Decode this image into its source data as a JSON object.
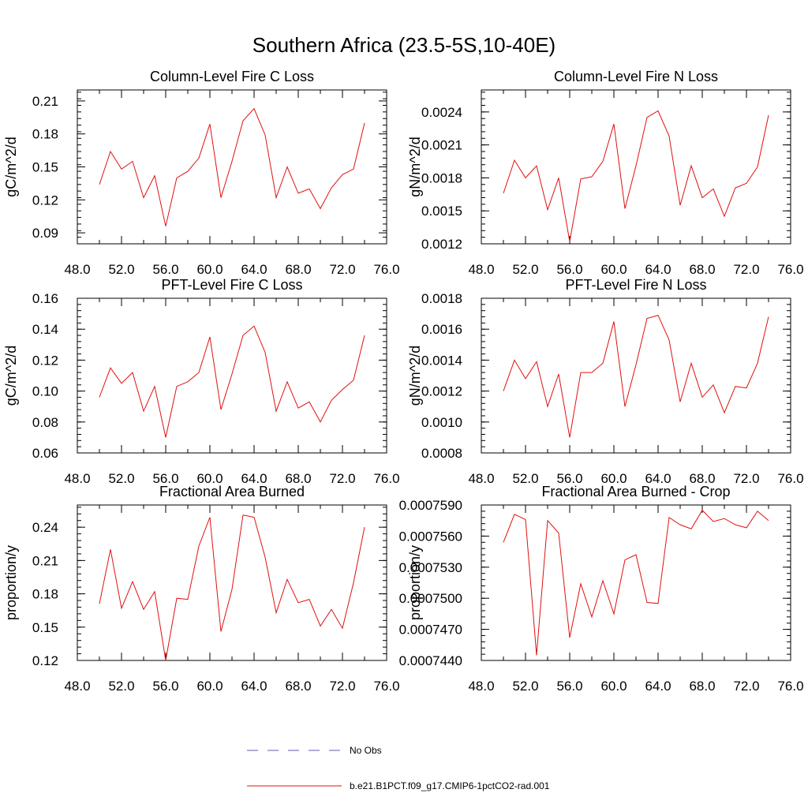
{
  "figure_title": "Southern Africa (23.5-5S,10-40E)",
  "legend": {
    "entries": [
      {
        "label": "No Obs",
        "color": "#5a5ab4",
        "style": "dashed"
      },
      {
        "label": "b.e21.B1PCT.f09_g17.CMIP6-1pctCO2-rad.001",
        "color": "#e01010",
        "style": "solid"
      }
    ]
  },
  "series_color": "#e01010",
  "chart_data": [
    {
      "type": "line",
      "title": "Column-Level Fire C Loss",
      "ylabel": "gC/m^2/d",
      "xlim": [
        48,
        76
      ],
      "ylim": [
        0.08,
        0.22
      ],
      "xticks": [
        48,
        52,
        56,
        60,
        64,
        68,
        72,
        76
      ],
      "xtick_labels": [
        "48.0",
        "52.0",
        "56.0",
        "60.0",
        "64.0",
        "68.0",
        "72.0",
        "76.0"
      ],
      "yticks": [
        0.09,
        0.12,
        0.15,
        0.18,
        0.21
      ],
      "ytick_labels": [
        "0.09",
        "0.12",
        "0.15",
        "0.18",
        "0.21"
      ],
      "x": [
        50,
        51,
        52,
        53,
        54,
        55,
        56,
        57,
        58,
        59,
        60,
        61,
        62,
        63,
        64,
        65,
        66,
        67,
        68,
        69,
        70,
        71,
        72,
        73,
        74
      ],
      "series": [
        {
          "values": [
            0.134,
            0.164,
            0.148,
            0.155,
            0.122,
            0.142,
            0.096,
            0.14,
            0.146,
            0.158,
            0.189,
            0.122,
            0.155,
            0.192,
            0.203,
            0.179,
            0.122,
            0.15,
            0.126,
            0.13,
            0.112,
            0.131,
            0.143,
            0.148,
            0.19
          ]
        }
      ]
    },
    {
      "type": "line",
      "title": "Column-Level Fire N Loss",
      "ylabel": "gN/m^2/d",
      "xlim": [
        48,
        76
      ],
      "ylim": [
        0.0012,
        0.0026
      ],
      "xticks": [
        48,
        52,
        56,
        60,
        64,
        68,
        72,
        76
      ],
      "xtick_labels": [
        "48.0",
        "52.0",
        "56.0",
        "60.0",
        "64.0",
        "68.0",
        "72.0",
        "76.0"
      ],
      "yticks": [
        0.0012,
        0.0015,
        0.0018,
        0.0021,
        0.0024
      ],
      "ytick_labels": [
        "0.0012",
        "0.0015",
        "0.0018",
        "0.0021",
        "0.0024"
      ],
      "x": [
        50,
        51,
        52,
        53,
        54,
        55,
        56,
        57,
        58,
        59,
        60,
        61,
        62,
        63,
        64,
        65,
        66,
        67,
        68,
        69,
        70,
        71,
        72,
        73,
        74
      ],
      "series": [
        {
          "values": [
            0.00166,
            0.00196,
            0.0018,
            0.00191,
            0.00151,
            0.0018,
            0.00122,
            0.00179,
            0.00181,
            0.00195,
            0.00229,
            0.00152,
            0.00191,
            0.00235,
            0.00241,
            0.00218,
            0.00155,
            0.00191,
            0.00162,
            0.0017,
            0.00145,
            0.00171,
            0.00175,
            0.0019,
            0.00237
          ]
        }
      ]
    },
    {
      "type": "line",
      "title": "PFT-Level Fire C Loss",
      "ylabel": "gC/m^2/d",
      "xlim": [
        48,
        76
      ],
      "ylim": [
        0.06,
        0.16
      ],
      "xticks": [
        48,
        52,
        56,
        60,
        64,
        68,
        72,
        76
      ],
      "xtick_labels": [
        "48.0",
        "52.0",
        "56.0",
        "60.0",
        "64.0",
        "68.0",
        "72.0",
        "76.0"
      ],
      "yticks": [
        0.06,
        0.08,
        0.1,
        0.12,
        0.14,
        0.16
      ],
      "ytick_labels": [
        "0.06",
        "0.08",
        "0.10",
        "0.12",
        "0.14",
        "0.16"
      ],
      "x": [
        50,
        51,
        52,
        53,
        54,
        55,
        56,
        57,
        58,
        59,
        60,
        61,
        62,
        63,
        64,
        65,
        66,
        67,
        68,
        69,
        70,
        71,
        72,
        73,
        74
      ],
      "series": [
        {
          "values": [
            0.096,
            0.115,
            0.105,
            0.112,
            0.087,
            0.103,
            0.07,
            0.103,
            0.106,
            0.112,
            0.135,
            0.088,
            0.111,
            0.136,
            0.142,
            0.125,
            0.087,
            0.106,
            0.089,
            0.093,
            0.08,
            0.094,
            0.101,
            0.107,
            0.136
          ]
        }
      ]
    },
    {
      "type": "line",
      "title": "PFT-Level Fire N Loss",
      "ylabel": "gN/m^2/d",
      "xlim": [
        48,
        76
      ],
      "ylim": [
        0.0008,
        0.0018
      ],
      "xticks": [
        48,
        52,
        56,
        60,
        64,
        68,
        72,
        76
      ],
      "xtick_labels": [
        "48.0",
        "52.0",
        "56.0",
        "60.0",
        "64.0",
        "68.0",
        "72.0",
        "76.0"
      ],
      "yticks": [
        0.0008,
        0.001,
        0.0012,
        0.0014,
        0.0016,
        0.0018
      ],
      "ytick_labels": [
        "0.0008",
        "0.0010",
        "0.0012",
        "0.0014",
        "0.0016",
        "0.0018"
      ],
      "x": [
        50,
        51,
        52,
        53,
        54,
        55,
        56,
        57,
        58,
        59,
        60,
        61,
        62,
        63,
        64,
        65,
        66,
        67,
        68,
        69,
        70,
        71,
        72,
        73,
        74
      ],
      "series": [
        {
          "values": [
            0.0012,
            0.0014,
            0.00128,
            0.00139,
            0.0011,
            0.00131,
            0.0009,
            0.00132,
            0.00132,
            0.00138,
            0.00165,
            0.0011,
            0.00137,
            0.00167,
            0.00169,
            0.00153,
            0.00113,
            0.00138,
            0.00116,
            0.00124,
            0.00106,
            0.00123,
            0.00122,
            0.00138,
            0.00168
          ]
        }
      ]
    },
    {
      "type": "line",
      "title": "Fractional Area Burned",
      "ylabel": "proportion/y",
      "xlim": [
        48,
        76
      ],
      "ylim": [
        0.12,
        0.26
      ],
      "xticks": [
        48,
        52,
        56,
        60,
        64,
        68,
        72,
        76
      ],
      "xtick_labels": [
        "48.0",
        "52.0",
        "56.0",
        "60.0",
        "64.0",
        "68.0",
        "72.0",
        "76.0"
      ],
      "yticks": [
        0.12,
        0.15,
        0.18,
        0.21,
        0.24
      ],
      "ytick_labels": [
        "0.12",
        "0.15",
        "0.18",
        "0.21",
        "0.24"
      ],
      "x": [
        50,
        51,
        52,
        53,
        54,
        55,
        56,
        57,
        58,
        59,
        60,
        61,
        62,
        63,
        64,
        65,
        66,
        67,
        68,
        69,
        70,
        71,
        72,
        73,
        74
      ],
      "series": [
        {
          "values": [
            0.171,
            0.22,
            0.167,
            0.191,
            0.166,
            0.182,
            0.12,
            0.176,
            0.175,
            0.223,
            0.249,
            0.146,
            0.184,
            0.251,
            0.249,
            0.213,
            0.163,
            0.193,
            0.172,
            0.175,
            0.151,
            0.166,
            0.149,
            0.19,
            0.24
          ]
        }
      ]
    },
    {
      "type": "line",
      "title": "Fractional Area Burned - Crop",
      "ylabel": "proportion/y",
      "xlim": [
        48,
        76
      ],
      "ylim": [
        0.000744,
        0.000759
      ],
      "xticks": [
        48,
        52,
        56,
        60,
        64,
        68,
        72,
        76
      ],
      "xtick_labels": [
        "48.0",
        "52.0",
        "56.0",
        "60.0",
        "64.0",
        "68.0",
        "72.0",
        "76.0"
      ],
      "yticks": [
        0.000744,
        0.000747,
        0.00075,
        0.000753,
        0.000756,
        0.000759
      ],
      "ytick_labels": [
        "0.0007440",
        "0.0007470",
        "0.0007500",
        "0.0007530",
        "0.0007560",
        "0.0007590"
      ],
      "x": [
        50,
        51,
        52,
        53,
        54,
        55,
        56,
        57,
        58,
        59,
        60,
        61,
        62,
        63,
        64,
        65,
        66,
        67,
        68,
        69,
        70,
        71,
        72,
        73,
        74
      ],
      "series": [
        {
          "values": [
            0.0007554,
            0.0007581,
            0.0007576,
            0.0007445,
            0.0007575,
            0.0007563,
            0.0007462,
            0.0007514,
            0.0007482,
            0.0007517,
            0.0007485,
            0.0007537,
            0.0007542,
            0.0007496,
            0.0007495,
            0.0007578,
            0.0007571,
            0.0007567,
            0.0007585,
            0.0007574,
            0.0007577,
            0.0007571,
            0.0007568,
            0.0007584,
            0.0007575
          ]
        }
      ]
    }
  ]
}
